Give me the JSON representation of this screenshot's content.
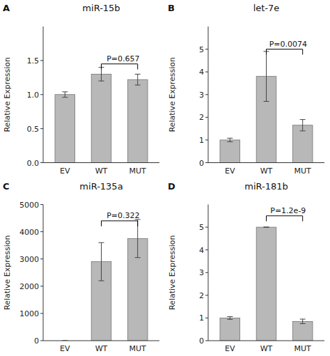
{
  "chart_data": [
    {
      "type": "bar",
      "title": "miR-15b",
      "categories": [
        "EV",
        "WT",
        "MUT"
      ],
      "values": [
        1.0,
        1.3,
        1.22
      ],
      "errors": [
        0.04,
        0.1,
        0.08
      ],
      "color": "#b8b8b8",
      "ylim": [
        0,
        2
      ],
      "yticks": [
        {
          "value": 0,
          "label": "0.0"
        },
        0.5,
        {
          "value": 1.0,
          "label": "1.0"
        },
        1.5
      ],
      "ylabel": "Relative Expression",
      "grid": false,
      "annotations": [
        {
          "text": "A"
        },
        {
          "text": "P=0.657",
          "from": "WT",
          "to": "MUT",
          "y": 1.45
        }
      ]
    },
    {
      "type": "bar",
      "title": "let-7e",
      "categories": [
        "EV",
        "WT",
        "MUT"
      ],
      "values": [
        1.0,
        3.8,
        1.65
      ],
      "errors": [
        0.08,
        1.1,
        0.25
      ],
      "color": "#b8b8b8",
      "ylim": [
        0,
        6
      ],
      "yticks": [
        0,
        1,
        2,
        3,
        4,
        5
      ],
      "ylabel": "Relative Expression",
      "grid": false,
      "annotations": [
        {
          "text": "B"
        },
        {
          "text": "P=0.0074",
          "from": "WT",
          "to": "MUT",
          "y": 5.0
        }
      ]
    },
    {
      "type": "bar",
      "title": "miR-135a",
      "categories": [
        "EV",
        "WT",
        "MUT"
      ],
      "values": [
        0,
        2900,
        3750
      ],
      "errors": [
        0,
        700,
        700
      ],
      "color": "#b8b8b8",
      "ylim": [
        0,
        5000
      ],
      "yticks": [
        0,
        1000,
        2000,
        3000,
        4000,
        5000
      ],
      "ylabel": "Relative Expression",
      "grid": false,
      "annotations": [
        {
          "text": "C"
        },
        {
          "text": "P=0.322",
          "from": "WT",
          "to": "MUT",
          "y": 4400
        }
      ]
    },
    {
      "type": "bar",
      "title": "miR-181b",
      "categories": [
        "EV",
        "WT",
        "MUT"
      ],
      "values": [
        1.0,
        5.0,
        0.85
      ],
      "errors": [
        0.06,
        0.0,
        0.1
      ],
      "color": "#b8b8b8",
      "ylim": [
        0,
        6
      ],
      "yticks": [
        0,
        1,
        2,
        3,
        4,
        5
      ],
      "ylabel": "Relative Expression",
      "grid": false,
      "annotations": [
        {
          "text": "D"
        },
        {
          "text": "P=1.2e-9",
          "from": "WT",
          "to": "MUT",
          "y": 5.5
        }
      ]
    }
  ]
}
